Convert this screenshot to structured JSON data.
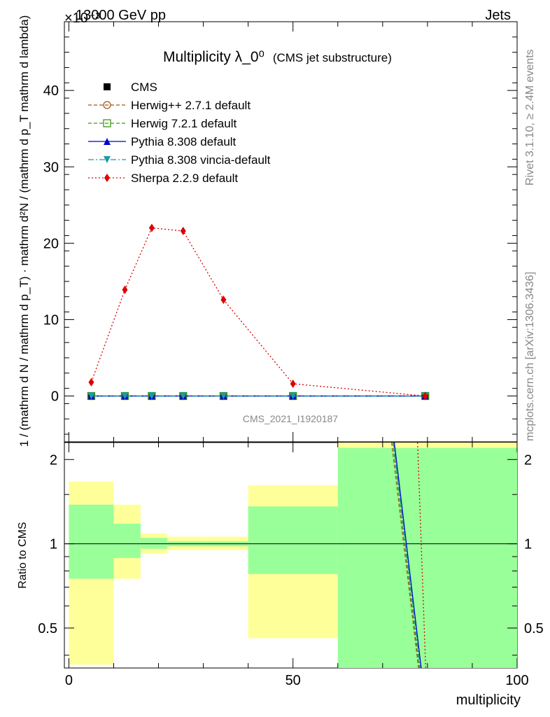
{
  "header": {
    "energy_label": "13000 GeV pp",
    "exponent_label": "×10⁻³",
    "process_label": "Jets"
  },
  "side_labels": {
    "rivet": "Rivet 3.1.10, ≥ 2.4M events",
    "mcplots": "mcplots.cern.ch [arXiv:1306.3436]"
  },
  "chart_data": [
    {
      "type": "line",
      "title": "Multiplicity λ_0⁰",
      "subtitle": "(CMS jet substructure)",
      "watermark": "CMS_2021_I1920187",
      "ylabel": "1 / (mathrm d N / mathrm d p_T) · mathrm d²N / (mathrm d p_T mathrm d lambda)",
      "xlim": [
        -1,
        100
      ],
      "ylim": [
        -6,
        49
      ],
      "y_ticks": [
        0,
        10,
        20,
        30,
        40
      ],
      "x": [
        5,
        12.5,
        18.5,
        25.5,
        34.5,
        50,
        79.5
      ],
      "series": [
        {
          "name": "CMS",
          "style": "square-marker",
          "color": "#000000",
          "values": [
            0,
            0,
            0,
            0,
            0,
            0,
            0
          ]
        },
        {
          "name": "Herwig++ 2.7.1 default",
          "style": "dashed-open-circle",
          "color": "#a05a14",
          "values": [
            0,
            0,
            0,
            0,
            0,
            0,
            0
          ]
        },
        {
          "name": "Herwig 7.2.1 default",
          "style": "dashed-open-square",
          "color": "#3a9a14",
          "values": [
            0,
            0,
            0,
            0,
            0,
            0,
            0
          ]
        },
        {
          "name": "Pythia 8.308 default",
          "style": "solid-triangle",
          "color": "#0000cc",
          "values": [
            0,
            0,
            0,
            0,
            0,
            0,
            0
          ]
        },
        {
          "name": "Pythia 8.308 vincia-default",
          "style": "dashdot-down-triangle",
          "color": "#1a9aaa",
          "values": [
            0,
            0,
            0,
            0,
            0,
            0,
            0
          ]
        },
        {
          "name": "Sherpa 2.2.9 default",
          "style": "dotted-diamond",
          "color": "#dd0000",
          "values": [
            1.8,
            13.9,
            22.0,
            21.6,
            12.6,
            1.6,
            0.0
          ]
        }
      ],
      "legend_position": "top-left"
    },
    {
      "type": "line",
      "ylabel": "Ratio to CMS",
      "xlabel": "multiplicity",
      "xlim": [
        -1,
        100
      ],
      "ylim": [
        0.36,
        2.3
      ],
      "x_ticks": [
        0,
        50,
        100
      ],
      "y_ticks": [
        0.5,
        1,
        2
      ],
      "bands": [
        {
          "x0": 0,
          "x1": 10,
          "green": [
            0.75,
            1.38
          ],
          "yellow": [
            0.37,
            1.67
          ]
        },
        {
          "x0": 10,
          "x1": 16,
          "green": [
            0.89,
            1.18
          ],
          "yellow": [
            0.75,
            1.38
          ]
        },
        {
          "x0": 16,
          "x1": 22,
          "green": [
            0.96,
            1.05
          ],
          "yellow": [
            0.92,
            1.09
          ]
        },
        {
          "x0": 22,
          "x1": 30,
          "green": [
            0.98,
            1.02
          ],
          "yellow": [
            0.95,
            1.06
          ]
        },
        {
          "x0": 30,
          "x1": 40,
          "green": [
            0.98,
            1.02
          ],
          "yellow": [
            0.95,
            1.06
          ]
        },
        {
          "x0": 40,
          "x1": 60,
          "green": [
            0.78,
            1.36
          ],
          "yellow": [
            0.46,
            1.62
          ]
        },
        {
          "x0": 60,
          "x1": 100,
          "green": [
            0.36,
            2.2
          ],
          "yellow": [
            0.36,
            2.3
          ]
        }
      ],
      "ratio_lines": [
        {
          "name": "Herwig++ 2.7.1 default",
          "points": [
            [
              72.0,
              2.3
            ],
            [
              78.0,
              0.36
            ]
          ]
        },
        {
          "name": "Herwig 7.2.1 default",
          "points": [
            [
              72.3,
              2.3
            ],
            [
              78.2,
              0.36
            ]
          ]
        },
        {
          "name": "Pythia 8.308 default",
          "points": [
            [
              72.6,
              2.3
            ],
            [
              78.6,
              0.36
            ]
          ]
        },
        {
          "name": "Pythia 8.308 vincia-default",
          "points": [
            [
              72.4,
              2.3
            ],
            [
              78.4,
              0.36
            ]
          ]
        },
        {
          "name": "Sherpa 2.2.9 default",
          "points": [
            [
              77.8,
              2.3
            ],
            [
              79.6,
              0.36
            ]
          ]
        }
      ]
    }
  ]
}
